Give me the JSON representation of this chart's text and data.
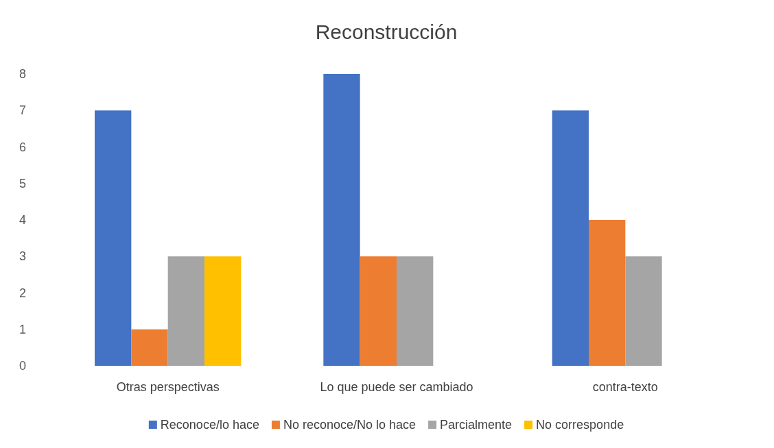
{
  "chart_data": {
    "type": "bar",
    "title": "Reconstrucción",
    "categories": [
      "Otras perspectivas",
      "Lo que puede ser cambiado",
      "contra-texto"
    ],
    "series": [
      {
        "name": "Reconoce/lo hace",
        "color": "#4472c4",
        "values": [
          7,
          8,
          7
        ]
      },
      {
        "name": "No reconoce/No lo hace",
        "color": "#ed7d31",
        "values": [
          1,
          3,
          4
        ]
      },
      {
        "name": "Parcialmente",
        "color": "#a5a5a5",
        "values": [
          3,
          3,
          3
        ]
      },
      {
        "name": "No corresponde",
        "color": "#ffc000",
        "values": [
          3,
          0,
          0
        ]
      }
    ],
    "ylim": [
      0,
      8
    ],
    "yticks": [
      0,
      1,
      2,
      3,
      4,
      5,
      6,
      7,
      8
    ],
    "grid": false,
    "legend": "bottom"
  }
}
